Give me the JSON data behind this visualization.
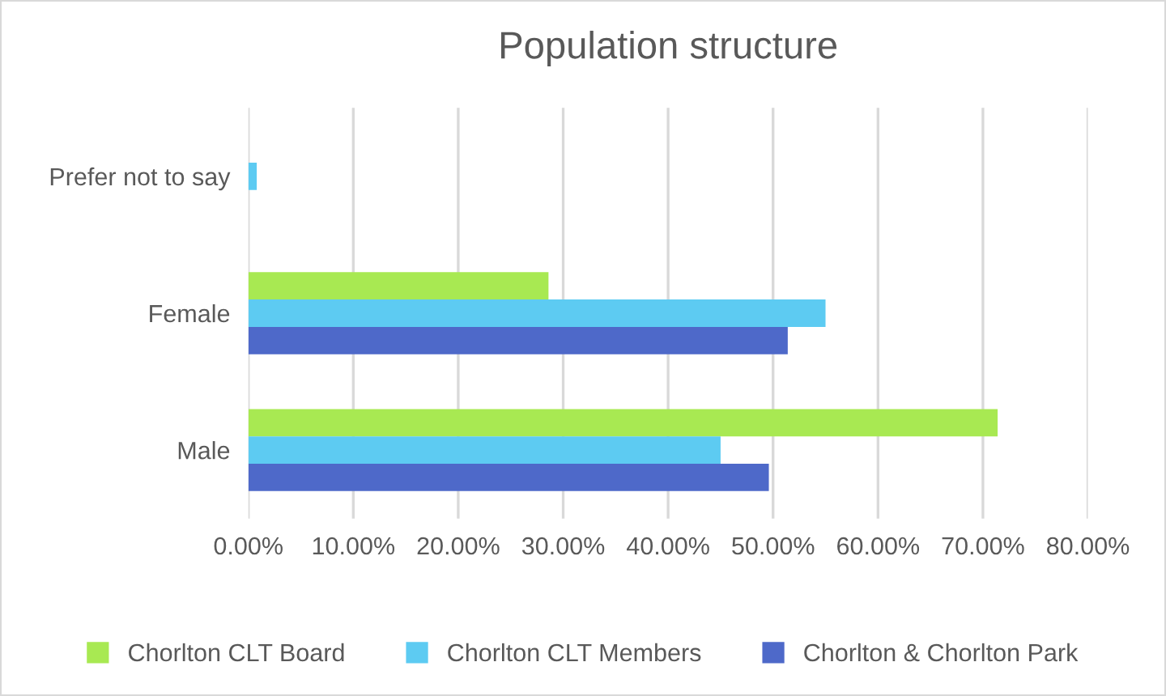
{
  "chart_data": {
    "type": "bar",
    "orientation": "horizontal",
    "title": "Population structure",
    "categories": [
      "Prefer not to say",
      "Female",
      "Male"
    ],
    "series": [
      {
        "name": "Chorlton CLT Board",
        "color": "#a8e952",
        "values": [
          null,
          28.6,
          71.4
        ]
      },
      {
        "name": "Chorlton CLT Members",
        "color": "#5dcbf2",
        "values": [
          0.8,
          55.0,
          45.0
        ]
      },
      {
        "name": "Chorlton & Chorlton Park",
        "color": "#4e69c9",
        "values": [
          null,
          51.4,
          49.6
        ]
      }
    ],
    "xlim": [
      0,
      80
    ],
    "xticks": [
      {
        "value": 0,
        "label": "0.00%"
      },
      {
        "value": 10,
        "label": "10.00%"
      },
      {
        "value": 20,
        "label": "20.00%"
      },
      {
        "value": 30,
        "label": "30.00%"
      },
      {
        "value": 40,
        "label": "40.00%"
      },
      {
        "value": 50,
        "label": "50.00%"
      },
      {
        "value": 60,
        "label": "60.00%"
      },
      {
        "value": 70,
        "label": "70.00%"
      },
      {
        "value": 80,
        "label": "80.00%"
      }
    ],
    "grid": "x",
    "legend": "bottom"
  }
}
